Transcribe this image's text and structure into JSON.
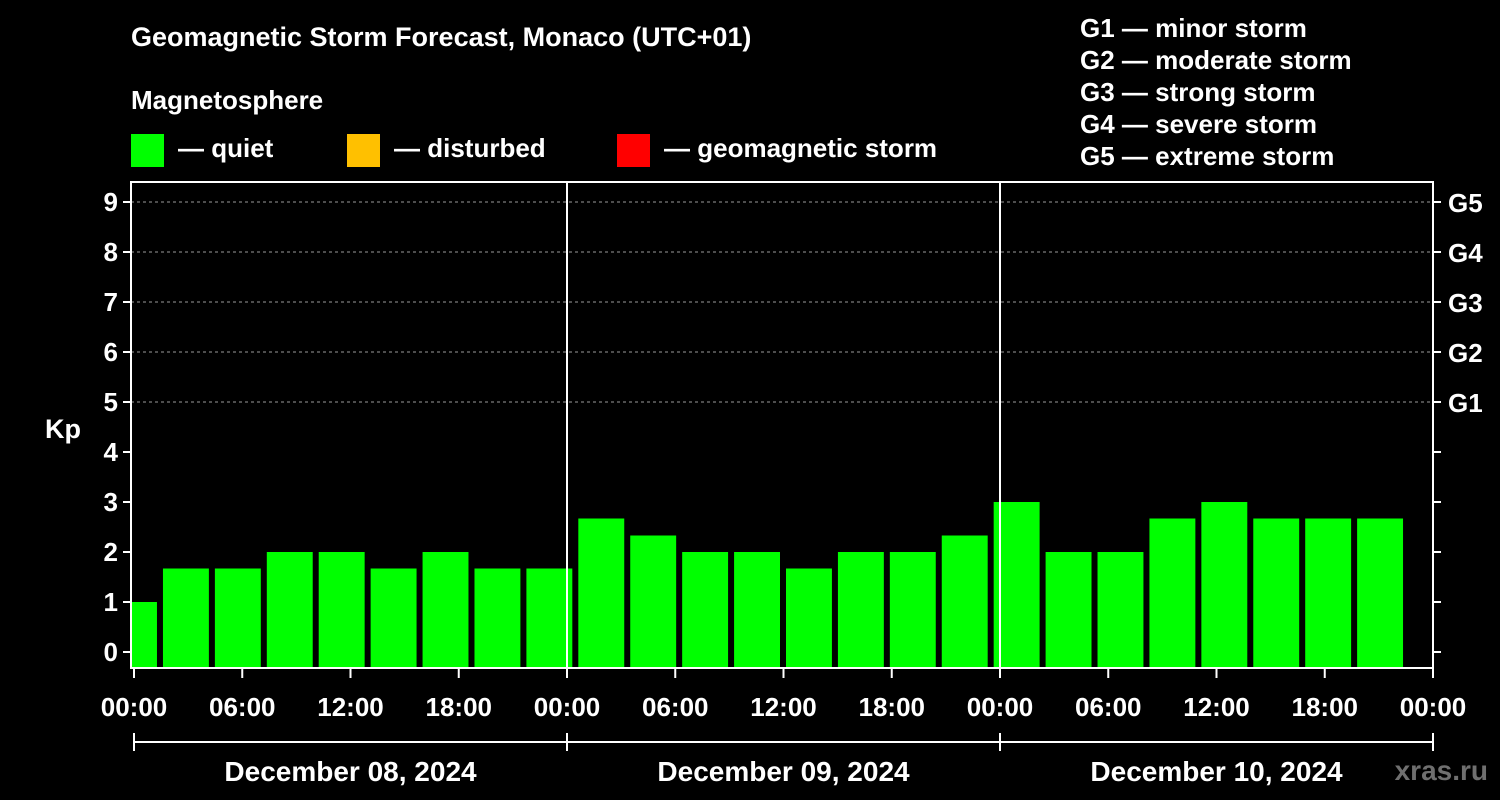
{
  "title": "Geomagnetic Storm Forecast, Monaco (UTC+01)",
  "subtitle": "Magnetosphere",
  "legend": [
    {
      "label": "— quiet",
      "color": "#00ff00"
    },
    {
      "label": "— disturbed",
      "color": "#ffc000"
    },
    {
      "label": "— geomagnetic storm",
      "color": "#ff0000"
    }
  ],
  "storm_scale": [
    "G1 — minor storm",
    "G2 — moderate storm",
    "G3 — strong storm",
    "G4 — severe storm",
    "G5 — extreme storm"
  ],
  "brand": "xras.ru",
  "chart_data": {
    "type": "bar",
    "ylabel": "Kp",
    "ylim": [
      0,
      9
    ],
    "y_ticks": [
      "0",
      "1",
      "2",
      "3",
      "4",
      "5",
      "6",
      "7",
      "8",
      "9"
    ],
    "right_axis_labels": [
      {
        "kp": 5,
        "label": "G1"
      },
      {
        "kp": 6,
        "label": "G2"
      },
      {
        "kp": 7,
        "label": "G3"
      },
      {
        "kp": 8,
        "label": "G4"
      },
      {
        "kp": 9,
        "label": "G5"
      }
    ],
    "x_tick_labels": [
      "00:00",
      "06:00",
      "12:00",
      "18:00",
      "00:00",
      "06:00",
      "12:00",
      "18:00",
      "00:00",
      "06:00",
      "12:00",
      "18:00",
      "00:00"
    ],
    "days": [
      "December 08, 2024",
      "December 09, 2024",
      "December 10, 2024"
    ],
    "grid": "dashed at Kp 5-9",
    "series": [
      {
        "values": [
          1.0,
          1.67,
          1.67,
          2.0,
          2.0,
          1.67,
          2.0,
          1.67,
          1.67,
          2.67,
          2.33,
          2.0,
          2.0,
          1.67,
          2.0,
          2.0,
          2.33,
          3.0,
          2.0,
          2.0,
          2.67,
          3.0,
          2.67,
          2.67,
          2.67
        ],
        "color": "#00ff00"
      }
    ]
  }
}
